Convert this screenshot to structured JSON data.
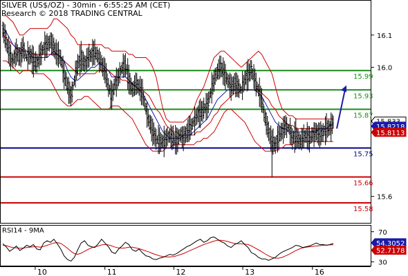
{
  "header": {
    "title": "SILVER (US$/OZ) - 30min - 6:55:25 AM (CET)",
    "copyright": "Research © 2018 TRADING CENTRAL"
  },
  "colors": {
    "price": "#000000",
    "ma_fast": "#1a1aa8",
    "ma_slow": "#cc0000",
    "bollinger": "#cc0000",
    "resistance": "#1a8a1a",
    "pivot": "#00008b",
    "support": "#cc0000",
    "arrow": "#1a1aa8",
    "rsi": "#000000",
    "rsi_ma": "#cc0000"
  },
  "chart_data": [
    {
      "type": "line",
      "title": "SILVER (US$/OZ) - 30min",
      "ylim": [
        15.52,
        16.2
      ],
      "y_ticks": [
        15.6,
        16.0,
        16.1
      ],
      "x_labels": [
        "10",
        "11",
        "12",
        "13",
        "16"
      ],
      "levels": [
        {
          "value": 15.99,
          "label": "15.99",
          "kind": "resistance"
        },
        {
          "value": 15.93,
          "label": "15.93",
          "kind": "resistance"
        },
        {
          "value": 15.87,
          "label": "15.87",
          "kind": "resistance"
        },
        {
          "value": 15.75,
          "label": "15.75",
          "kind": "pivot"
        },
        {
          "value": 15.66,
          "label": "15.66",
          "kind": "support"
        },
        {
          "value": 15.58,
          "label": "15.58",
          "kind": "support"
        }
      ],
      "price_tags": [
        {
          "value": 15.833,
          "label": "15.833",
          "style": "last"
        },
        {
          "value": 15.8218,
          "label": "15.8218",
          "style": "ma_fast"
        },
        {
          "value": 15.8113,
          "label": "15.8113",
          "style": "ma_slow"
        }
      ],
      "series": [
        {
          "role": "price",
          "values": [
            16.12,
            16.08,
            16.04,
            16.02,
            16.05,
            16.03,
            16.06,
            16.03,
            16.04,
            16.02,
            16.01,
            16.04,
            16.06,
            16.07,
            16.08,
            16.06,
            16.04,
            16.03,
            15.98,
            15.94,
            15.91,
            15.96,
            16.01,
            16.03,
            16.01,
            16.03,
            16.04,
            16.05,
            16.03,
            16.01,
            15.99,
            15.94,
            15.91,
            15.95,
            15.97,
            16.0,
            16.01,
            15.96,
            15.93,
            15.95,
            15.94,
            15.92,
            15.87,
            15.83,
            15.8,
            15.78,
            15.77,
            15.77,
            15.78,
            15.79,
            15.78,
            15.77,
            15.79,
            15.78,
            15.8,
            15.81,
            15.83,
            15.85,
            15.86,
            15.87,
            15.88,
            15.92,
            15.96,
            15.99,
            16.0,
            15.98,
            15.96,
            15.94,
            15.95,
            15.94,
            15.93,
            15.96,
            15.98,
            15.99,
            15.96,
            15.93,
            15.9,
            15.84,
            15.8,
            15.77,
            15.76,
            15.79,
            15.8,
            15.82,
            15.81,
            15.78,
            15.79,
            15.77,
            15.78,
            15.79,
            15.78,
            15.79,
            15.8,
            15.79,
            15.8,
            15.81,
            15.81,
            15.83
          ]
        },
        {
          "role": "ma_fast",
          "values": [
            16.12,
            16.11,
            16.09,
            16.07,
            16.06,
            16.05,
            16.05,
            16.05,
            16.04,
            16.03,
            16.03,
            16.03,
            16.03,
            16.03,
            16.04,
            16.05,
            16.04,
            16.03,
            16.02,
            15.99,
            15.97,
            15.96,
            15.96,
            15.97,
            15.98,
            15.99,
            16.0,
            16.0,
            16.01,
            16.01,
            16.0,
            15.99,
            15.97,
            15.97,
            15.97,
            15.97,
            15.97,
            15.96,
            15.95,
            15.94,
            15.93,
            15.92,
            15.9,
            15.88,
            15.86,
            15.84,
            15.82,
            15.8,
            15.79,
            15.78,
            15.78,
            15.78,
            15.78,
            15.79,
            15.79,
            15.79,
            15.8,
            15.81,
            15.82,
            15.83,
            15.84,
            15.86,
            15.88,
            15.9,
            15.91,
            15.92,
            15.93,
            15.93,
            15.93,
            15.93,
            15.93,
            15.93,
            15.93,
            15.93,
            15.93,
            15.92,
            15.91,
            15.89,
            15.87,
            15.85,
            15.83,
            15.82,
            15.81,
            15.81,
            15.8,
            15.8,
            15.8,
            15.8,
            15.8,
            15.8,
            15.8,
            15.8,
            15.8,
            15.81,
            15.81,
            15.81,
            15.82,
            15.822
          ]
        },
        {
          "role": "ma_slow",
          "values": [
            16.1,
            16.09,
            16.08,
            16.07,
            16.06,
            16.06,
            16.05,
            16.05,
            16.05,
            16.04,
            16.04,
            16.04,
            16.04,
            16.04,
            16.04,
            16.04,
            16.04,
            16.03,
            16.02,
            16.01,
            16.0,
            15.99,
            15.98,
            15.98,
            15.98,
            15.98,
            15.98,
            15.98,
            15.99,
            15.99,
            15.99,
            15.99,
            15.98,
            15.97,
            15.97,
            15.96,
            15.96,
            15.95,
            15.95,
            15.94,
            15.93,
            15.93,
            15.92,
            15.91,
            15.89,
            15.87,
            15.86,
            15.84,
            15.82,
            15.81,
            15.8,
            15.8,
            15.79,
            15.79,
            15.79,
            15.79,
            15.79,
            15.8,
            15.8,
            15.81,
            15.82,
            15.83,
            15.85,
            15.86,
            15.88,
            15.89,
            15.9,
            15.91,
            15.92,
            15.92,
            15.93,
            15.93,
            15.93,
            15.93,
            15.93,
            15.93,
            15.92,
            15.91,
            15.9,
            15.88,
            15.87,
            15.85,
            15.84,
            15.83,
            15.82,
            15.82,
            15.81,
            15.81,
            15.81,
            15.81,
            15.81,
            15.81,
            15.81,
            15.81,
            15.81,
            15.81,
            15.81,
            15.811
          ]
        },
        {
          "role": "bollinger_upper",
          "values": [
            16.16,
            16.16,
            16.15,
            16.14,
            16.12,
            16.1,
            16.1,
            16.11,
            16.12,
            16.12,
            16.12,
            16.12,
            16.12,
            16.12,
            16.13,
            16.15,
            16.15,
            16.14,
            16.13,
            16.12,
            16.1,
            16.09,
            16.07,
            16.07,
            16.07,
            16.07,
            16.07,
            16.07,
            16.07,
            16.07,
            16.06,
            16.06,
            16.05,
            16.05,
            16.05,
            16.05,
            16.05,
            16.04,
            16.04,
            16.03,
            16.03,
            16.03,
            16.03,
            16.02,
            16.0,
            15.97,
            15.92,
            15.87,
            15.84,
            15.83,
            15.83,
            15.83,
            15.83,
            15.83,
            15.84,
            15.85,
            15.87,
            15.9,
            15.92,
            15.94,
            15.97,
            16.0,
            16.03,
            16.04,
            16.05,
            16.05,
            16.04,
            16.03,
            16.02,
            16.01,
            16.0,
            16.01,
            16.02,
            16.03,
            16.04,
            16.05,
            16.04,
            16.02,
            16.0,
            15.98,
            15.94,
            15.9,
            15.87,
            15.86,
            15.85,
            15.85,
            15.84,
            15.84,
            15.84,
            15.84,
            15.84,
            15.84,
            15.84,
            15.84,
            15.84,
            15.84,
            15.84,
            15.84
          ]
        },
        {
          "role": "bollinger_lower",
          "values": [
            16.02,
            16.02,
            16.01,
            16.0,
            15.99,
            15.98,
            15.99,
            15.99,
            15.99,
            15.98,
            15.98,
            15.98,
            15.98,
            15.97,
            15.96,
            15.94,
            15.92,
            15.9,
            15.89,
            15.88,
            15.88,
            15.89,
            15.9,
            15.9,
            15.91,
            15.91,
            15.9,
            15.89,
            15.88,
            15.87,
            15.87,
            15.87,
            15.88,
            15.88,
            15.88,
            15.87,
            15.86,
            15.85,
            15.84,
            15.82,
            15.8,
            15.78,
            15.76,
            15.75,
            15.74,
            15.74,
            15.74,
            15.74,
            15.75,
            15.75,
            15.76,
            15.76,
            15.76,
            15.76,
            15.76,
            15.76,
            15.76,
            15.77,
            15.77,
            15.78,
            15.78,
            15.79,
            15.8,
            15.82,
            15.84,
            15.86,
            15.87,
            15.87,
            15.86,
            15.85,
            15.84,
            15.83,
            15.81,
            15.79,
            15.77,
            15.76,
            15.75,
            15.74,
            15.74,
            15.74,
            15.74,
            15.75,
            15.75,
            15.76,
            15.76,
            15.76,
            15.77,
            15.77,
            15.77,
            15.77,
            15.77,
            15.77,
            15.77,
            15.77,
            15.77,
            15.77,
            15.77,
            15.77
          ]
        }
      ],
      "forecast_arrow": {
        "from": 15.81,
        "to": 15.94
      }
    },
    {
      "type": "line",
      "title": "RSI14 - 9MA",
      "ylim": [
        25,
        78
      ],
      "y_ticks": [
        30,
        70
      ],
      "price_tags": [
        {
          "value": 54.3052,
          "label": "54.3052",
          "style": "rsi"
        },
        {
          "value": 52.7178,
          "label": "52.7178",
          "style": "rsi_ma"
        }
      ],
      "series": [
        {
          "role": "rsi",
          "values": [
            54,
            50,
            44,
            47,
            51,
            45,
            48,
            52,
            50,
            53,
            47,
            46,
            55,
            58,
            56,
            60,
            54,
            47,
            38,
            33,
            31,
            36,
            46,
            55,
            58,
            52,
            50,
            49,
            54,
            60,
            55,
            50,
            43,
            41,
            47,
            51,
            56,
            53,
            46,
            44,
            47,
            42,
            38,
            37,
            34,
            33,
            35,
            36,
            38,
            40,
            39,
            41,
            44,
            47,
            50,
            52,
            55,
            58,
            60,
            56,
            58,
            62,
            63,
            60,
            57,
            55,
            51,
            49,
            53,
            55,
            58,
            53,
            49,
            42,
            40,
            36,
            34,
            34,
            32,
            34,
            36,
            40,
            43,
            45,
            47,
            49,
            52,
            51,
            49,
            50,
            51,
            53,
            55,
            53,
            53,
            52,
            53,
            54.3
          ]
        },
        {
          "role": "rsi_ma",
          "values": [
            52,
            51.5,
            50,
            49,
            48.5,
            48,
            48.3,
            49,
            49.5,
            50,
            50,
            49.5,
            50.5,
            52,
            53.5,
            55,
            55.5,
            54.5,
            51.5,
            48,
            44,
            41,
            40,
            41.5,
            44,
            46.5,
            48.5,
            50,
            51,
            52.5,
            53,
            52.5,
            51,
            49.5,
            48.5,
            48,
            48.5,
            49.5,
            49.5,
            48.5,
            47.5,
            46,
            44.5,
            43,
            41,
            39.5,
            38,
            37,
            36.5,
            36.5,
            37,
            38,
            39.5,
            41,
            43,
            45,
            47,
            49,
            51,
            53,
            54.5,
            56,
            57.5,
            58.5,
            58.5,
            58,
            57,
            55.5,
            54.5,
            54,
            54,
            53.5,
            53,
            51,
            48.5,
            46,
            43.5,
            40.5,
            38,
            36,
            35,
            35,
            36,
            38,
            40,
            42.5,
            45,
            47,
            48.5,
            49.5,
            50,
            50.5,
            51,
            51.5,
            52,
            52.3,
            52.5,
            52.7
          ]
        }
      ]
    }
  ]
}
